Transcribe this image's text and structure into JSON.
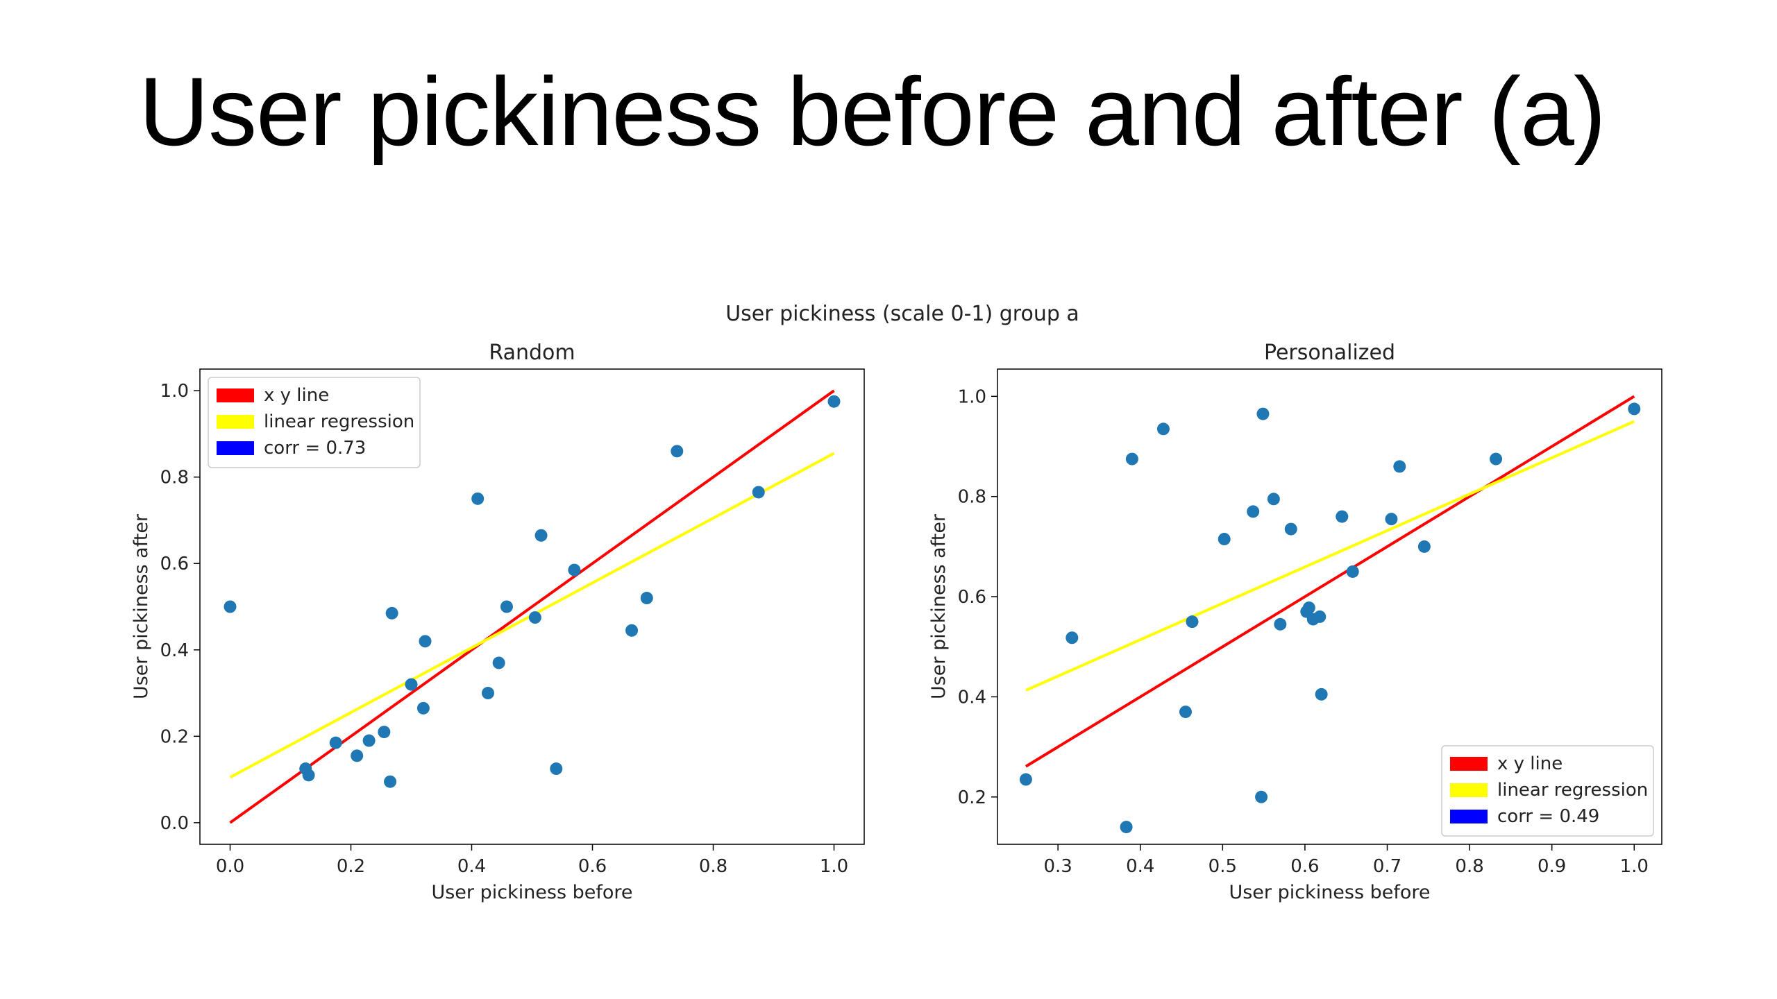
{
  "slide": {
    "title": "User pickiness before and after (a)"
  },
  "figure": {
    "suptitle": "User pickiness (scale 0-1) group a"
  },
  "chart_data": [
    {
      "type": "scatter",
      "title": "Random",
      "xlabel": "User pickiness before",
      "ylabel": "User pickiness after",
      "xlim": [
        -0.05,
        1.05
      ],
      "ylim": [
        -0.05,
        1.05
      ],
      "xticks": [
        0.0,
        0.2,
        0.4,
        0.6,
        0.8,
        1.0
      ],
      "yticks": [
        0.0,
        0.2,
        0.4,
        0.6,
        0.8,
        1.0
      ],
      "xtick_labels": [
        "0.0",
        "0.2",
        "0.4",
        "0.6",
        "0.8",
        "1.0"
      ],
      "ytick_labels": [
        "0.0",
        "0.2",
        "0.4",
        "0.6",
        "0.8",
        "1.0"
      ],
      "points": [
        [
          0.0,
          0.5
        ],
        [
          0.125,
          0.125
        ],
        [
          0.13,
          0.11
        ],
        [
          0.175,
          0.185
        ],
        [
          0.21,
          0.155
        ],
        [
          0.23,
          0.19
        ],
        [
          0.255,
          0.21
        ],
        [
          0.265,
          0.095
        ],
        [
          0.268,
          0.485
        ],
        [
          0.3,
          0.32
        ],
        [
          0.32,
          0.265
        ],
        [
          0.323,
          0.42
        ],
        [
          0.41,
          0.75
        ],
        [
          0.427,
          0.3
        ],
        [
          0.445,
          0.37
        ],
        [
          0.458,
          0.5
        ],
        [
          0.505,
          0.475
        ],
        [
          0.515,
          0.665
        ],
        [
          0.54,
          0.125
        ],
        [
          0.57,
          0.585
        ],
        [
          0.665,
          0.445
        ],
        [
          0.69,
          0.52
        ],
        [
          0.74,
          0.86
        ],
        [
          0.875,
          0.765
        ],
        [
          1.0,
          0.975
        ]
      ],
      "lines": [
        {
          "name": "x y line",
          "color": "#ff0000",
          "x": [
            0.0,
            1.0
          ],
          "y": [
            0.0,
            1.0
          ]
        },
        {
          "name": "linear regression",
          "color": "#ffff00",
          "x": [
            0.0,
            1.0
          ],
          "y": [
            0.105,
            0.855
          ]
        }
      ],
      "legend": {
        "position": "upper-left",
        "entries": [
          {
            "label": "x y line",
            "color": "#ff0000"
          },
          {
            "label": "linear regression",
            "color": "#ffff00"
          },
          {
            "label": "corr = 0.73",
            "color": "#0000ff"
          }
        ]
      },
      "point_color": "#1f77b4"
    },
    {
      "type": "scatter",
      "title": "Personalized",
      "xlabel": "User pickiness before",
      "ylabel": "User pickiness after",
      "xlim": [
        0.2265,
        1.0335
      ],
      "ylim": [
        0.1055,
        1.0545
      ],
      "xticks": [
        0.3,
        0.4,
        0.5,
        0.6,
        0.7,
        0.8,
        0.9,
        1.0
      ],
      "yticks": [
        0.2,
        0.4,
        0.6,
        0.8,
        1.0
      ],
      "xtick_labels": [
        "0.3",
        "0.4",
        "0.5",
        "0.6",
        "0.7",
        "0.8",
        "0.9",
        "1.0"
      ],
      "ytick_labels": [
        "0.2",
        "0.4",
        "0.6",
        "0.8",
        "1.0"
      ],
      "points": [
        [
          0.261,
          0.235
        ],
        [
          0.317,
          0.518
        ],
        [
          0.383,
          0.14
        ],
        [
          0.39,
          0.875
        ],
        [
          0.428,
          0.935
        ],
        [
          0.455,
          0.37
        ],
        [
          0.463,
          0.55
        ],
        [
          0.502,
          0.715
        ],
        [
          0.537,
          0.77
        ],
        [
          0.547,
          0.2
        ],
        [
          0.549,
          0.965
        ],
        [
          0.562,
          0.795
        ],
        [
          0.57,
          0.545
        ],
        [
          0.583,
          0.735
        ],
        [
          0.602,
          0.57
        ],
        [
          0.605,
          0.578
        ],
        [
          0.61,
          0.555
        ],
        [
          0.618,
          0.56
        ],
        [
          0.62,
          0.405
        ],
        [
          0.645,
          0.76
        ],
        [
          0.658,
          0.65
        ],
        [
          0.705,
          0.755
        ],
        [
          0.715,
          0.86
        ],
        [
          0.745,
          0.7
        ],
        [
          0.832,
          0.875
        ],
        [
          1.0,
          0.975
        ]
      ],
      "lines": [
        {
          "name": "x y line",
          "color": "#ff0000",
          "x": [
            0.261,
            1.0
          ],
          "y": [
            0.261,
            1.0
          ]
        },
        {
          "name": "linear regression",
          "color": "#ffff00",
          "x": [
            0.261,
            1.0
          ],
          "y": [
            0.413,
            0.95
          ]
        }
      ],
      "legend": {
        "position": "lower-right",
        "entries": [
          {
            "label": "x y line",
            "color": "#ff0000"
          },
          {
            "label": "linear regression",
            "color": "#ffff00"
          },
          {
            "label": "corr = 0.49",
            "color": "#0000ff"
          }
        ]
      },
      "point_color": "#1f77b4"
    }
  ]
}
